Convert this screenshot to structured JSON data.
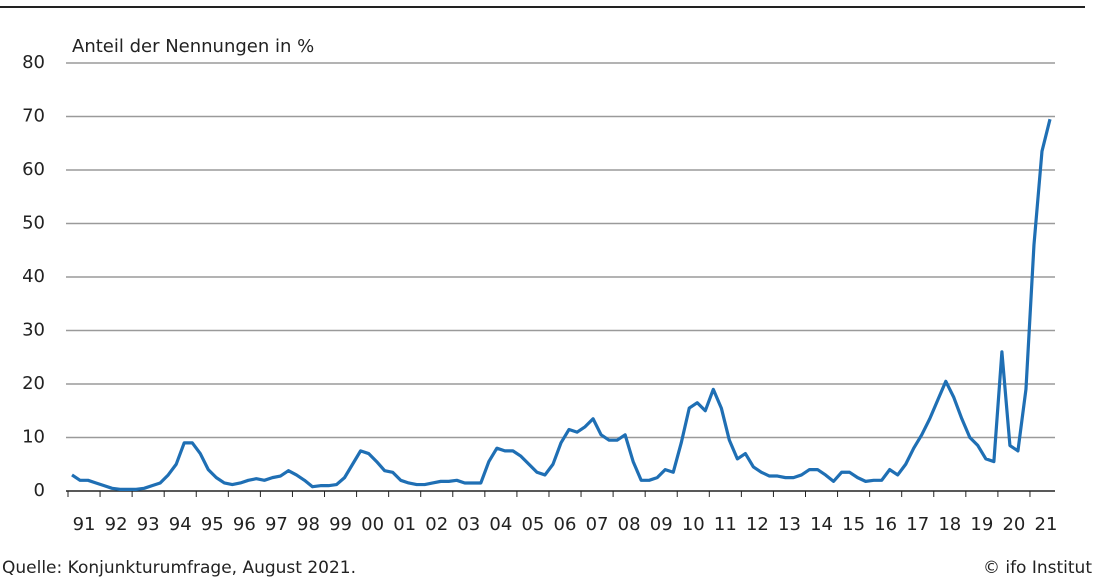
{
  "chart_data": {
    "type": "line",
    "y_axis_label": "Anteil der Nennungen in %",
    "source": "Quelle: Konjunkturumfrage, August 2021.",
    "credit": "© ifo Institut",
    "categories": [
      null,
      "91",
      null,
      null,
      null,
      "92",
      null,
      null,
      null,
      "93",
      null,
      null,
      null,
      "94",
      null,
      null,
      null,
      "95",
      null,
      null,
      null,
      "96",
      null,
      null,
      null,
      "97",
      null,
      null,
      null,
      "98",
      null,
      null,
      null,
      "99",
      null,
      null,
      null,
      "00",
      null,
      null,
      null,
      "01",
      null,
      null,
      null,
      "02",
      null,
      null,
      null,
      "03",
      null,
      null,
      null,
      "04",
      null,
      null,
      null,
      "05",
      null,
      null,
      null,
      "06",
      null,
      null,
      null,
      "07",
      null,
      null,
      null,
      "08",
      null,
      null,
      null,
      "09",
      null,
      null,
      null,
      "10",
      null,
      null,
      null,
      "11",
      null,
      null,
      null,
      "12",
      null,
      null,
      null,
      "13",
      null,
      null,
      null,
      "14",
      null,
      null,
      null,
      "15",
      null,
      null,
      null,
      "16",
      null,
      null,
      null,
      "17",
      null,
      null,
      null,
      "18",
      null,
      null,
      null,
      "19",
      null,
      null,
      null,
      "20",
      null,
      null,
      null,
      "21",
      null
    ],
    "series": [
      {
        "color": "#1f6fb4",
        "values": [
          3,
          2,
          2,
          1.5,
          1,
          0.5,
          0.3,
          0.3,
          0.3,
          0.5,
          1,
          1.5,
          3,
          5,
          9,
          9,
          7,
          4,
          2.5,
          1.5,
          1.2,
          1.5,
          2,
          2.3,
          2,
          2.5,
          2.8,
          3.8,
          3,
          2,
          0.8,
          1,
          1,
          1.2,
          2.5,
          5,
          7.5,
          7,
          5.5,
          3.8,
          3.5,
          2,
          1.5,
          1.2,
          1.2,
          1.5,
          1.8,
          1.8,
          2,
          1.5,
          1.5,
          1.5,
          5.5,
          8,
          7.5,
          7.5,
          6.5,
          5,
          3.5,
          3,
          5,
          9,
          11.5,
          11,
          12,
          13.5,
          10.5,
          9.5,
          9.5,
          10.5,
          5.5,
          2,
          2,
          2.5,
          4,
          3.5,
          9,
          15.5,
          16.5,
          15,
          19,
          15.5,
          9.5,
          6,
          7,
          4.5,
          3.5,
          2.8,
          2.8,
          2.5,
          2.5,
          3,
          4,
          4,
          3,
          1.8,
          3.5,
          3.5,
          2.5,
          1.8,
          2,
          2,
          4,
          3,
          5,
          8,
          10.5,
          13.5,
          17,
          20.5,
          17.5,
          13.5,
          10,
          8.5,
          6,
          5.5,
          26,
          8.5,
          7.5,
          19,
          46,
          63.5,
          69.5
        ]
      }
    ],
    "ylim": [
      0,
      80
    ],
    "yticks": [
      0,
      10,
      20,
      30,
      40,
      50,
      60,
      70,
      80
    ],
    "grid": true
  }
}
